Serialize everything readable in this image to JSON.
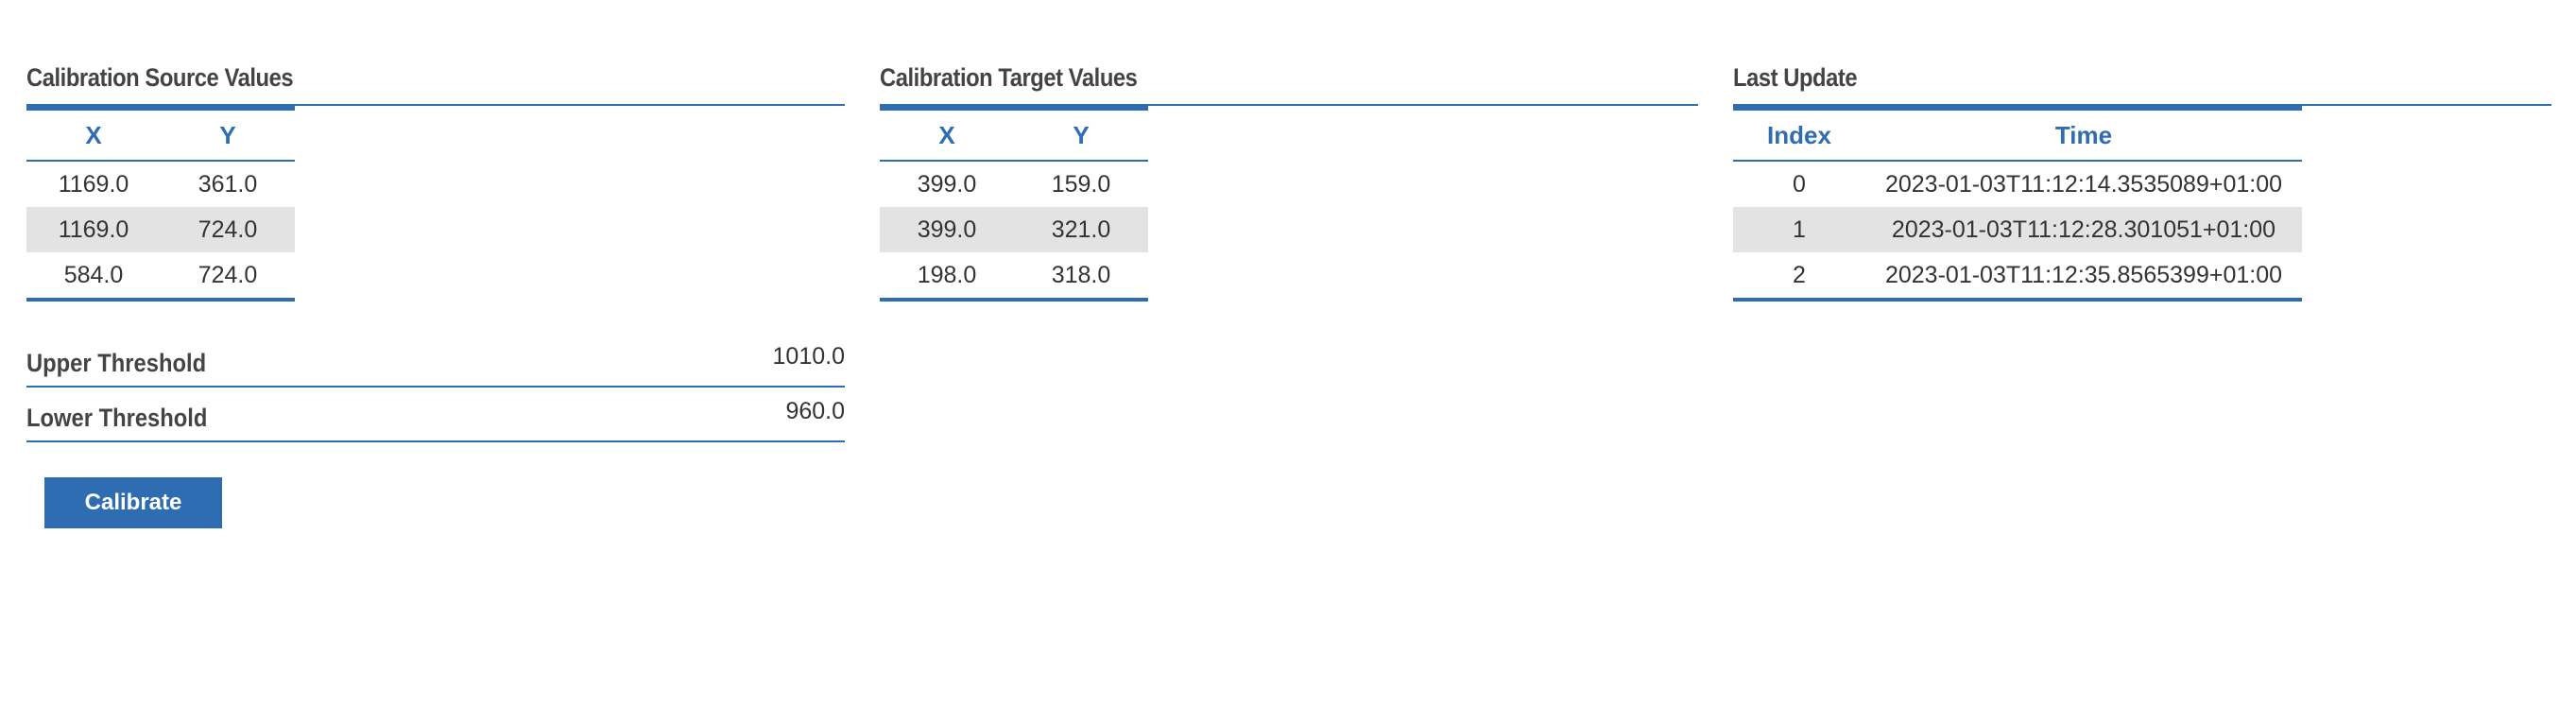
{
  "source_panel": {
    "title": "Calibration Source Values",
    "columns": [
      "X",
      "Y"
    ],
    "rows": [
      [
        "1169.0",
        "361.0"
      ],
      [
        "1169.0",
        "724.0"
      ],
      [
        "584.0",
        "724.0"
      ]
    ]
  },
  "target_panel": {
    "title": "Calibration Target Values",
    "columns": [
      "X",
      "Y"
    ],
    "rows": [
      [
        "399.0",
        "159.0"
      ],
      [
        "399.0",
        "321.0"
      ],
      [
        "198.0",
        "318.0"
      ]
    ]
  },
  "update_panel": {
    "title": "Last Update",
    "columns": [
      "Index",
      "Time"
    ],
    "rows": [
      [
        "0",
        "2023-01-03T11:12:14.3535089+01:00"
      ],
      [
        "1",
        "2023-01-03T11:12:28.301051+01:00"
      ],
      [
        "2",
        "2023-01-03T11:12:35.8565399+01:00"
      ]
    ]
  },
  "thresholds": {
    "upper_label": "Upper Threshold",
    "upper_value": "1010.0",
    "lower_label": "Lower Threshold",
    "lower_value": "960.0"
  },
  "actions": {
    "calibrate_label": "Calibrate"
  },
  "colors": {
    "accent": "#2f6db2",
    "row_alt": "#e3e3e3",
    "heading": "#444444",
    "text": "#333333"
  }
}
